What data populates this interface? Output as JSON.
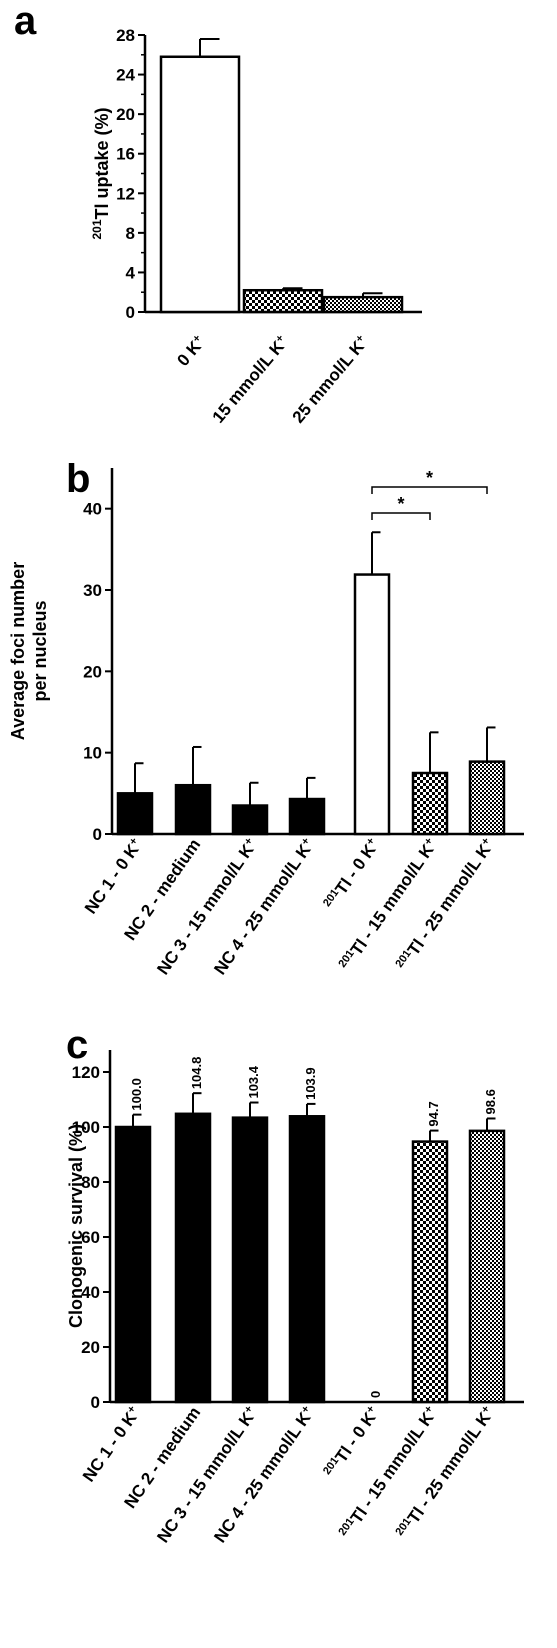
{
  "figure": {
    "panels": [
      "a",
      "b",
      "c"
    ]
  },
  "chart_data": [
    {
      "panel": "a",
      "type": "bar",
      "ylabel_sup": "201",
      "ylabel": "Tl uptake (%)",
      "ylim": [
        0,
        28
      ],
      "yticks": [
        0,
        4,
        8,
        12,
        16,
        20,
        24,
        28
      ],
      "categories": [
        {
          "text": "0 K",
          "sup_pre": "",
          "sup_post": "+"
        },
        {
          "text": "15 mmol/L K",
          "sup_pre": "",
          "sup_post": "+"
        },
        {
          "text": "25 mmol/L K",
          "sup_pre": "",
          "sup_post": "+"
        }
      ],
      "values": [
        25.8,
        2.2,
        1.5
      ],
      "errors": [
        1.8,
        0.2,
        0.4
      ],
      "fills": [
        "white",
        "checker-fine",
        "checker-dense"
      ],
      "grid": false
    },
    {
      "panel": "b",
      "type": "bar",
      "ylabel": [
        "Average foci number",
        "per nucleus"
      ],
      "ylim": [
        0,
        45
      ],
      "yticks": [
        0,
        10,
        20,
        30,
        40
      ],
      "categories": [
        {
          "text": "NC 1 - 0 K",
          "sup_pre": "",
          "sup_post": "+"
        },
        {
          "text": "NC 2 - medium",
          "sup_pre": "",
          "sup_post": ""
        },
        {
          "text": "NC 3 - 15 mmol/L K",
          "sup_pre": "",
          "sup_post": "+"
        },
        {
          "text": "NC 4 - 25 mmol/L K",
          "sup_pre": "",
          "sup_post": "+"
        },
        {
          "text": "Tl - 0 K",
          "sup_pre": "201",
          "sup_post": "+"
        },
        {
          "text": "Tl - 15 mmol/L K",
          "sup_pre": "201",
          "sup_post": "+"
        },
        {
          "text": "Tl - 25 mmol/L K",
          "sup_pre": "201",
          "sup_post": "+"
        }
      ],
      "values": [
        5.0,
        6.0,
        3.5,
        4.3,
        31.9,
        7.5,
        8.9
      ],
      "errors": [
        3.7,
        4.7,
        2.8,
        2.6,
        5.2,
        5.0,
        4.2
      ],
      "fills": [
        "black",
        "black",
        "black",
        "black",
        "white",
        "checker-fine",
        "checker-dense"
      ],
      "significance": [
        {
          "from": 4,
          "to": 5,
          "label": "*"
        },
        {
          "from": 4,
          "to": 6,
          "label": "*"
        }
      ],
      "grid": false
    },
    {
      "panel": "c",
      "type": "bar",
      "ylabel": "Clonogenic survival (%)",
      "ylim": [
        0,
        128
      ],
      "yticks": [
        0,
        20,
        40,
        60,
        80,
        100,
        120
      ],
      "categories": [
        {
          "text": "NC 1 - 0 K",
          "sup_pre": "",
          "sup_post": "+"
        },
        {
          "text": "NC 2 - medium",
          "sup_pre": "",
          "sup_post": ""
        },
        {
          "text": "NC 3 - 15 mmol/L K",
          "sup_pre": "",
          "sup_post": "+"
        },
        {
          "text": "NC 4 - 25 mmol/L K",
          "sup_pre": "",
          "sup_post": "+"
        },
        {
          "text": "Tl - 0 K",
          "sup_pre": "201",
          "sup_post": "+"
        },
        {
          "text": "Tl - 15 mmol/L K",
          "sup_pre": "201",
          "sup_post": "+"
        },
        {
          "text": "Tl - 25 mmol/L K",
          "sup_pre": "201",
          "sup_post": "+"
        }
      ],
      "values": [
        100.0,
        104.8,
        103.4,
        103.9,
        0,
        94.7,
        98.6
      ],
      "errors": [
        4.5,
        7.5,
        5.5,
        4.5,
        0,
        4.0,
        4.5
      ],
      "data_labels": [
        "100.0",
        "104.8",
        "103.4",
        "103.9",
        "0",
        "94.7",
        "98.6"
      ],
      "fills": [
        "black",
        "black",
        "black",
        "black",
        "white",
        "checker-fine",
        "checker-dense"
      ],
      "grid": false
    }
  ],
  "colors": {
    "ink": "#000000",
    "paper": "#ffffff"
  }
}
